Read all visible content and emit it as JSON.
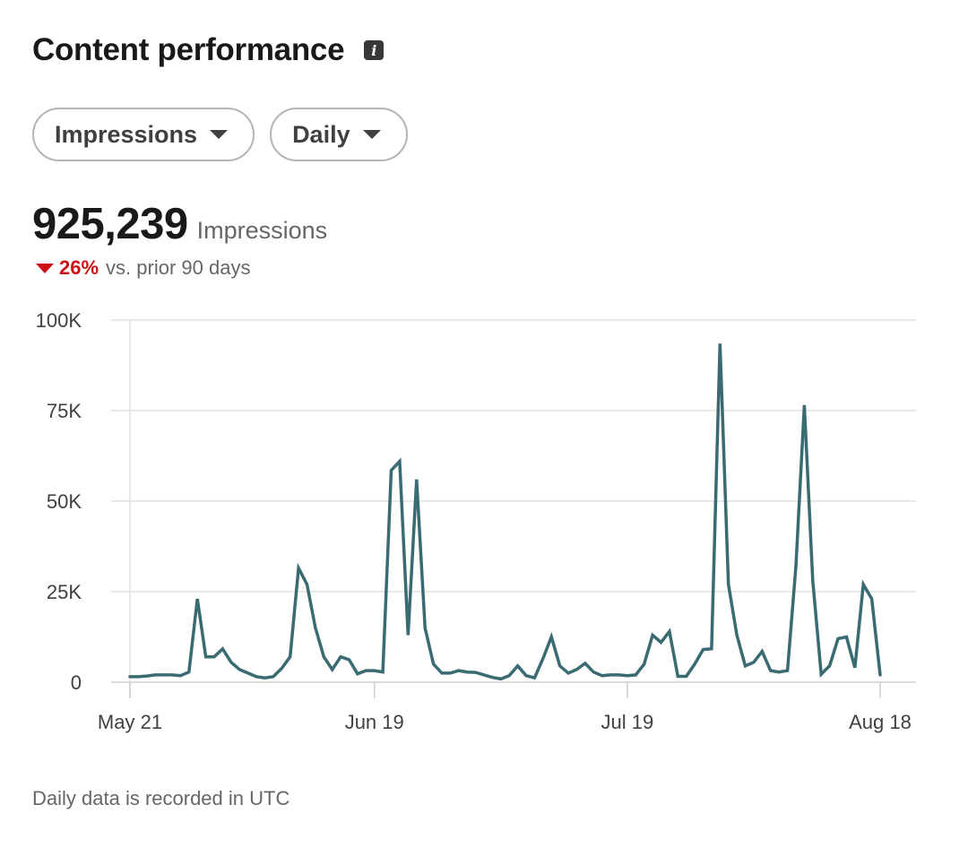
{
  "header": {
    "title": "Content performance",
    "info_icon": "info-icon"
  },
  "filters": {
    "metric_label": "Impressions",
    "period_label": "Daily"
  },
  "summary": {
    "value": "925,239",
    "unit": "Impressions",
    "change_pct": "26%",
    "change_text": "vs. prior 90 days",
    "change_direction": "down"
  },
  "footnote": "Daily data is recorded in UTC",
  "colors": {
    "line": "#3a6b73",
    "grid": "#e0e0e0",
    "negative": "#cc1016"
  },
  "chart_data": {
    "type": "line",
    "title": "",
    "xlabel": "",
    "ylabel": "",
    "x_start": "May 21",
    "x_end": "Aug 18",
    "x_ticks": [
      "May 21",
      "Jun 19",
      "Jul 19",
      "Aug 18"
    ],
    "y_ticks": [
      "0",
      "25K",
      "50K",
      "75K",
      "100K"
    ],
    "ylim": [
      0,
      100000
    ],
    "grid": true,
    "series": [
      {
        "values": [
          1500,
          1500,
          1700,
          2000,
          2000,
          2000,
          1800,
          2800,
          23000,
          7000,
          7000,
          9200,
          5500,
          3500,
          2500,
          1500,
          1200,
          1500,
          3800,
          7000,
          31500,
          27000,
          15000,
          7000,
          3500,
          7000,
          6200,
          2300,
          3200,
          3200,
          2800,
          58500,
          61000,
          13000,
          56000,
          15000,
          5000,
          2500,
          2500,
          3200,
          2800,
          2700,
          2000,
          1300,
          900,
          1800,
          4500,
          1800,
          1200,
          6500,
          12500,
          4500,
          2500,
          3500,
          5200,
          2800,
          1800,
          2000,
          2000,
          1800,
          2000,
          5000,
          13000,
          11000,
          14000,
          1600,
          1600,
          5000,
          9000,
          9200,
          93500,
          27000,
          13000,
          4500,
          5500,
          8500,
          3200,
          2800,
          3200,
          32000,
          76500,
          28000,
          2200,
          4500,
          12000,
          12500,
          4000,
          27000,
          23000,
          2000
        ]
      }
    ]
  }
}
